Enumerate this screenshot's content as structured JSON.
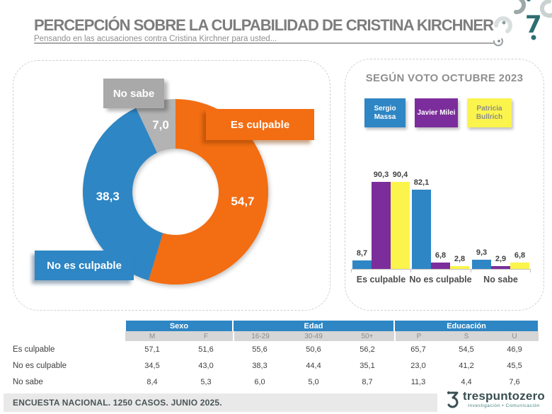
{
  "header": {
    "title": "PERCEPCIÓN SOBRE LA CULPABILIDAD DE CRISTINA KIRCHNER",
    "subtitle": "Pensando en las acusaciones contra Cristina Kirchner para usted..."
  },
  "colors": {
    "orange": "#f36d12",
    "blue": "#2e86c4",
    "gray": "#b3b3b3",
    "purple": "#7c2d9c",
    "yellow": "#fbf44d",
    "table_header_blue": "#2e86c4",
    "table_subheader_gray": "#d6d6d6",
    "footer_bar_gray": "#e9e9e9",
    "brand_teal": "#2e6e72"
  },
  "chart_data": [
    {
      "type": "pie",
      "subtype": "donut",
      "labels": [
        "Es culpable",
        "No es culpable",
        "No sabe"
      ],
      "values": [
        54.7,
        38.3,
        7.0
      ],
      "display_values": [
        "54,7",
        "38,3",
        "7,0"
      ],
      "colors": [
        "#f36d12",
        "#2e86c4",
        "#b3b3b3"
      ],
      "start_angle_deg": 0,
      "direction": "clockwise",
      "legend_position": "callouts"
    },
    {
      "type": "bar",
      "title": "SEGÚN VOTO OCTUBRE 2023",
      "categories": [
        "Es culpable",
        "No es culpable",
        "No sabe"
      ],
      "series": [
        {
          "name": "Sergio Massa",
          "color": "#2e86c4",
          "label_color": "#ffffff",
          "values": [
            8.7,
            82.1,
            9.3
          ],
          "display_values": [
            "8,7",
            "82,1",
            "9,3"
          ]
        },
        {
          "name": "Javier Milei",
          "color": "#7c2d9c",
          "label_color": "#ffffff",
          "values": [
            90.3,
            6.8,
            2.9
          ],
          "display_values": [
            "90,3",
            "6,8",
            "2,9"
          ]
        },
        {
          "name": "Patricia Bullrich",
          "color": "#fbf44d",
          "label_color": "#8d8d84",
          "values": [
            90.4,
            2.8,
            6.8
          ],
          "display_values": [
            "90,4",
            "2,8",
            "6,8"
          ]
        }
      ],
      "ylim": [
        0,
        100
      ],
      "grid": false,
      "legend_position": "top"
    },
    {
      "type": "table",
      "groups": [
        {
          "label": "Sexo",
          "columns": [
            "M",
            "F"
          ]
        },
        {
          "label": "Edad",
          "columns": [
            "16-29",
            "30-49",
            "50+"
          ]
        },
        {
          "label": "Educación",
          "columns": [
            "P",
            "S",
            "U"
          ]
        }
      ],
      "rows": [
        {
          "label": "Es culpable",
          "values": [
            "57,1",
            "51,6",
            "55,6",
            "50,6",
            "56,2",
            "65,7",
            "54,5",
            "46,9"
          ]
        },
        {
          "label": "No es culpable",
          "values": [
            "34,5",
            "43,0",
            "38,3",
            "44,4",
            "35,1",
            "23,0",
            "41,2",
            "45,5"
          ]
        },
        {
          "label": "No sabe",
          "values": [
            "8,4",
            "5,3",
            "6,0",
            "5,0",
            "8,7",
            "11,3",
            "4,4",
            "7,6"
          ]
        }
      ]
    }
  ],
  "footer": {
    "note": "ENCUESTA NACIONAL. 1250 CASOS. JUNIO 2025.",
    "logo_name": "trespuntozero",
    "logo_subtext": "Investigación • Comunicación"
  }
}
